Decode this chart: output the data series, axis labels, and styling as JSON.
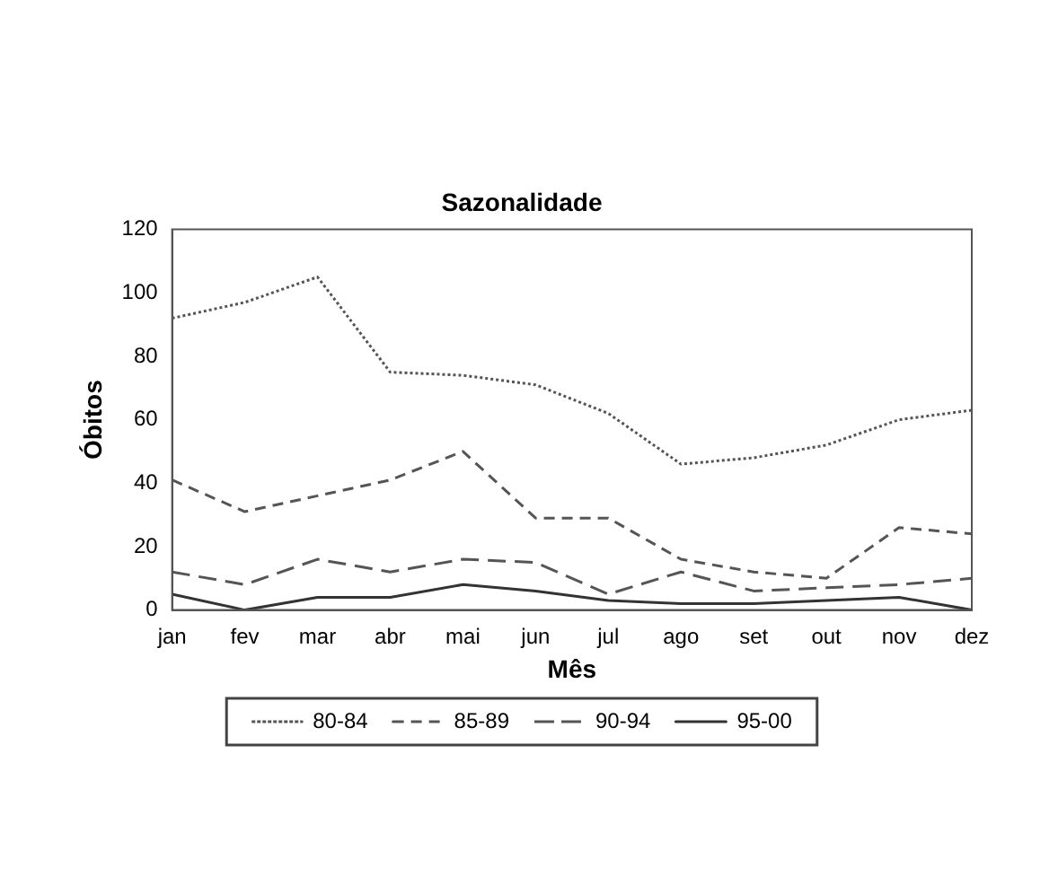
{
  "chart_data": {
    "type": "line",
    "title": "Sazonalidade",
    "xlabel": "Mês",
    "ylabel": "Óbitos",
    "categories": [
      "jan",
      "fev",
      "mar",
      "abr",
      "mai",
      "jun",
      "jul",
      "ago",
      "set",
      "out",
      "nov",
      "dez"
    ],
    "ylim": [
      0,
      120
    ],
    "yticks": [
      0,
      20,
      40,
      60,
      80,
      100,
      120
    ],
    "grid": false,
    "legend": "bottom",
    "marker": "none",
    "series": [
      {
        "name": "80-84",
        "color": "#555555",
        "line_style": "dotted",
        "values": [
          92,
          97,
          105,
          75,
          74,
          71,
          62,
          46,
          48,
          52,
          60,
          63
        ]
      },
      {
        "name": "85-89",
        "color": "#555555",
        "line_style": "dashed",
        "values": [
          41,
          31,
          36,
          41,
          50,
          29,
          29,
          16,
          12,
          10,
          26,
          24
        ]
      },
      {
        "name": "90-94",
        "color": "#555555",
        "line_style": "dashed",
        "values": [
          12,
          8,
          16,
          12,
          16,
          15,
          5,
          12,
          6,
          7,
          8,
          10
        ]
      },
      {
        "name": "95-00",
        "color": "#333333",
        "line_style": "solid",
        "values": [
          5,
          0,
          4,
          4,
          8,
          6,
          3,
          2,
          2,
          3,
          4,
          0
        ]
      }
    ]
  }
}
